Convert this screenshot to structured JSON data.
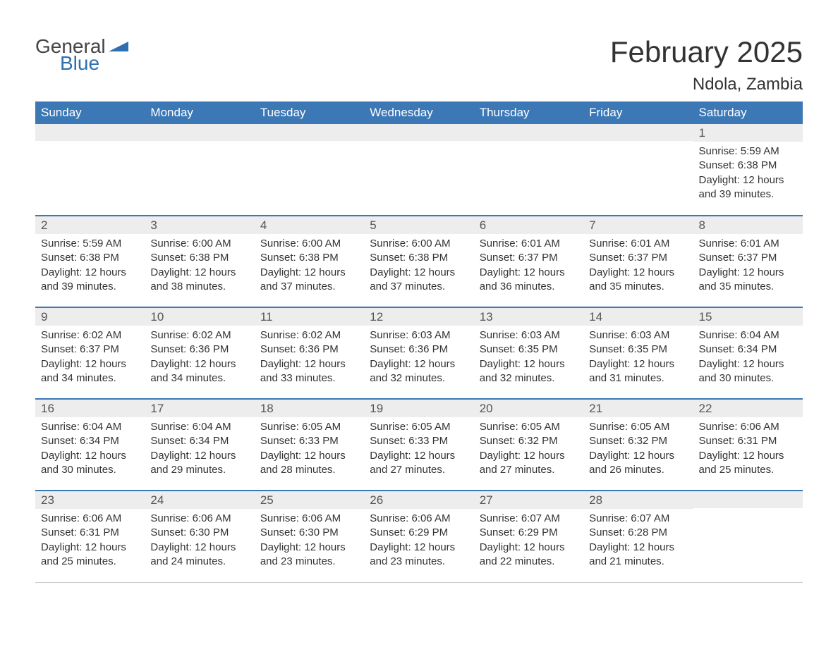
{
  "brand": {
    "part1": "General",
    "part2": "Blue",
    "flag_color": "#2f6fb0"
  },
  "title": "February 2025",
  "location": "Ndola, Zambia",
  "colors": {
    "header_bg": "#3b78b5",
    "header_text": "#ffffff",
    "row_sep": "#3b78b5",
    "daynum_bg": "#ededed",
    "text": "#333333"
  },
  "weekdays": [
    "Sunday",
    "Monday",
    "Tuesday",
    "Wednesday",
    "Thursday",
    "Friday",
    "Saturday"
  ],
  "weeks": [
    [
      null,
      null,
      null,
      null,
      null,
      null,
      {
        "n": "1",
        "sr": "5:59 AM",
        "ss": "6:38 PM",
        "dl": "12 hours and 39 minutes."
      }
    ],
    [
      {
        "n": "2",
        "sr": "5:59 AM",
        "ss": "6:38 PM",
        "dl": "12 hours and 39 minutes."
      },
      {
        "n": "3",
        "sr": "6:00 AM",
        "ss": "6:38 PM",
        "dl": "12 hours and 38 minutes."
      },
      {
        "n": "4",
        "sr": "6:00 AM",
        "ss": "6:38 PM",
        "dl": "12 hours and 37 minutes."
      },
      {
        "n": "5",
        "sr": "6:00 AM",
        "ss": "6:38 PM",
        "dl": "12 hours and 37 minutes."
      },
      {
        "n": "6",
        "sr": "6:01 AM",
        "ss": "6:37 PM",
        "dl": "12 hours and 36 minutes."
      },
      {
        "n": "7",
        "sr": "6:01 AM",
        "ss": "6:37 PM",
        "dl": "12 hours and 35 minutes."
      },
      {
        "n": "8",
        "sr": "6:01 AM",
        "ss": "6:37 PM",
        "dl": "12 hours and 35 minutes."
      }
    ],
    [
      {
        "n": "9",
        "sr": "6:02 AM",
        "ss": "6:37 PM",
        "dl": "12 hours and 34 minutes."
      },
      {
        "n": "10",
        "sr": "6:02 AM",
        "ss": "6:36 PM",
        "dl": "12 hours and 34 minutes."
      },
      {
        "n": "11",
        "sr": "6:02 AM",
        "ss": "6:36 PM",
        "dl": "12 hours and 33 minutes."
      },
      {
        "n": "12",
        "sr": "6:03 AM",
        "ss": "6:36 PM",
        "dl": "12 hours and 32 minutes."
      },
      {
        "n": "13",
        "sr": "6:03 AM",
        "ss": "6:35 PM",
        "dl": "12 hours and 32 minutes."
      },
      {
        "n": "14",
        "sr": "6:03 AM",
        "ss": "6:35 PM",
        "dl": "12 hours and 31 minutes."
      },
      {
        "n": "15",
        "sr": "6:04 AM",
        "ss": "6:34 PM",
        "dl": "12 hours and 30 minutes."
      }
    ],
    [
      {
        "n": "16",
        "sr": "6:04 AM",
        "ss": "6:34 PM",
        "dl": "12 hours and 30 minutes."
      },
      {
        "n": "17",
        "sr": "6:04 AM",
        "ss": "6:34 PM",
        "dl": "12 hours and 29 minutes."
      },
      {
        "n": "18",
        "sr": "6:05 AM",
        "ss": "6:33 PM",
        "dl": "12 hours and 28 minutes."
      },
      {
        "n": "19",
        "sr": "6:05 AM",
        "ss": "6:33 PM",
        "dl": "12 hours and 27 minutes."
      },
      {
        "n": "20",
        "sr": "6:05 AM",
        "ss": "6:32 PM",
        "dl": "12 hours and 27 minutes."
      },
      {
        "n": "21",
        "sr": "6:05 AM",
        "ss": "6:32 PM",
        "dl": "12 hours and 26 minutes."
      },
      {
        "n": "22",
        "sr": "6:06 AM",
        "ss": "6:31 PM",
        "dl": "12 hours and 25 minutes."
      }
    ],
    [
      {
        "n": "23",
        "sr": "6:06 AM",
        "ss": "6:31 PM",
        "dl": "12 hours and 25 minutes."
      },
      {
        "n": "24",
        "sr": "6:06 AM",
        "ss": "6:30 PM",
        "dl": "12 hours and 24 minutes."
      },
      {
        "n": "25",
        "sr": "6:06 AM",
        "ss": "6:30 PM",
        "dl": "12 hours and 23 minutes."
      },
      {
        "n": "26",
        "sr": "6:06 AM",
        "ss": "6:29 PM",
        "dl": "12 hours and 23 minutes."
      },
      {
        "n": "27",
        "sr": "6:07 AM",
        "ss": "6:29 PM",
        "dl": "12 hours and 22 minutes."
      },
      {
        "n": "28",
        "sr": "6:07 AM",
        "ss": "6:28 PM",
        "dl": "12 hours and 21 minutes."
      },
      null
    ]
  ],
  "labels": {
    "sunrise": "Sunrise:",
    "sunset": "Sunset:",
    "daylight": "Daylight:"
  }
}
